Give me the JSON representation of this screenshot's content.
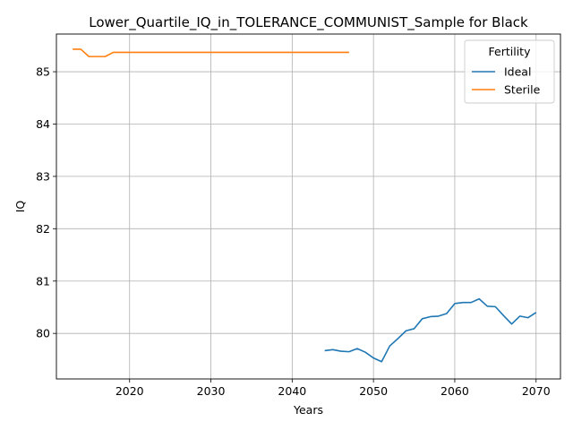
{
  "chart_data": {
    "type": "line",
    "title": "Lower_Quartile_IQ_in_TOLERANCE_COMMUNIST_Sample for Black",
    "xlabel": "Years",
    "ylabel": "IQ",
    "xlim": [
      2011,
      2073
    ],
    "ylim": [
      79.13,
      85.72
    ],
    "xticks": [
      2020,
      2030,
      2040,
      2050,
      2060,
      2070
    ],
    "yticks": [
      80,
      81,
      82,
      83,
      84,
      85
    ],
    "grid": true,
    "legend": {
      "title": "Fertility",
      "placement": "top-right"
    },
    "series": [
      {
        "name": "Ideal",
        "color": "#1f77b4",
        "x": [
          2044,
          2045,
          2046,
          2047,
          2048,
          2049,
          2050,
          2051,
          2052,
          2053,
          2054,
          2055,
          2056,
          2057,
          2058,
          2059,
          2060,
          2061,
          2062,
          2063,
          2064,
          2065,
          2066,
          2067,
          2068,
          2069,
          2070
        ],
        "y": [
          79.67,
          79.69,
          79.66,
          79.65,
          79.71,
          79.64,
          79.53,
          79.46,
          79.76,
          79.9,
          80.05,
          80.09,
          80.28,
          80.32,
          80.33,
          80.38,
          80.57,
          80.59,
          80.59,
          80.66,
          80.52,
          80.51,
          80.34,
          80.18,
          80.33,
          80.3,
          80.4
        ]
      },
      {
        "name": "Sterile",
        "color": "#ff7f0e",
        "x": [
          2013,
          2014,
          2015,
          2016,
          2017,
          2018,
          2019,
          2020,
          2025,
          2030,
          2035,
          2040,
          2045,
          2047
        ],
        "y": [
          85.43,
          85.43,
          85.29,
          85.29,
          85.29,
          85.37,
          85.37,
          85.37,
          85.37,
          85.37,
          85.37,
          85.37,
          85.37,
          85.37
        ]
      }
    ]
  }
}
